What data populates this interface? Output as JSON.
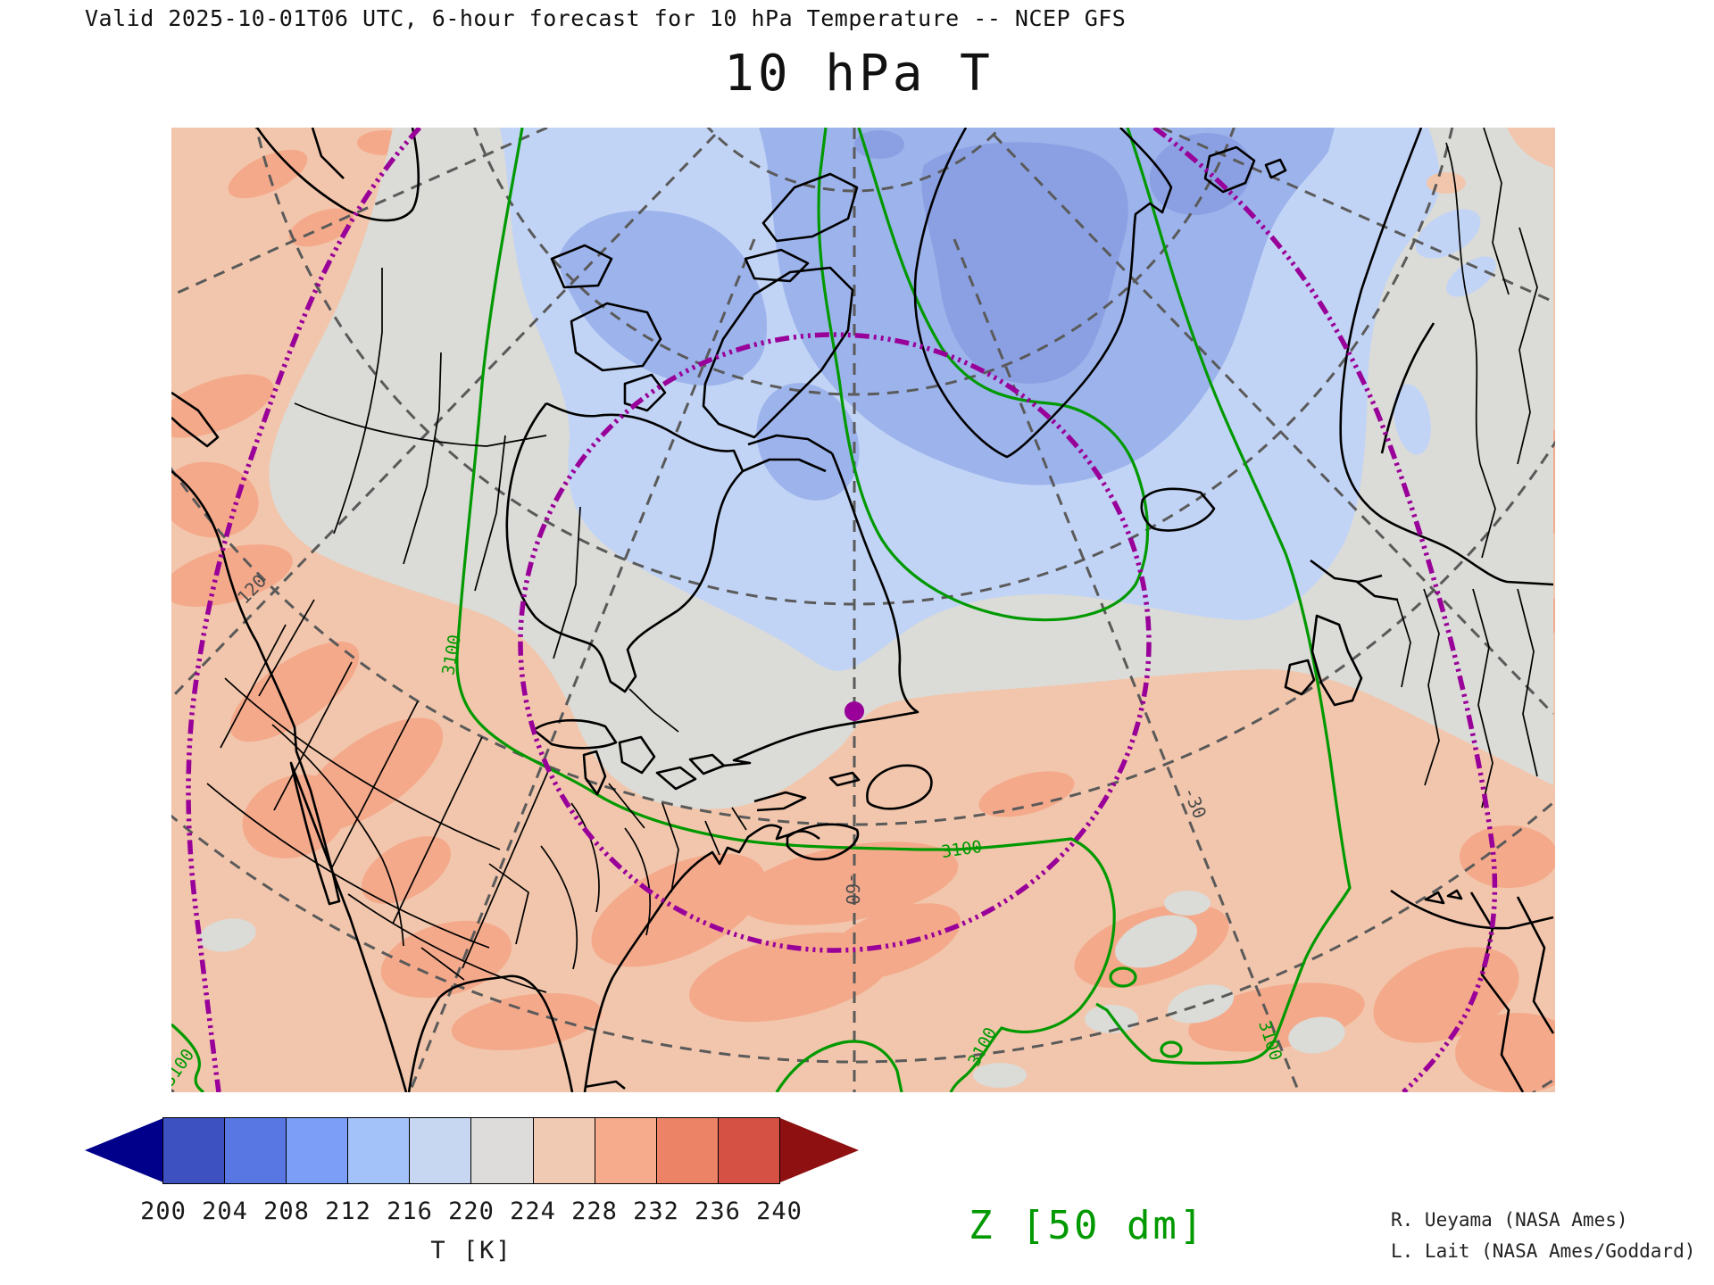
{
  "header": {
    "valid_line": "Valid 2025-10-01T06 UTC, 6-hour forecast for 10 hPa Temperature -- NCEP GFS"
  },
  "title": "10 hPa T",
  "plot": {
    "valid_time": "2025-10-01T06 UTC",
    "forecast": "6-hour forecast",
    "level": "10 hPa",
    "variable": "Temperature",
    "model": "NCEP GFS",
    "height_contour_value": "3100",
    "height_contour_units_label": "Z [50 dm]"
  },
  "colorbar": {
    "tick_labels": [
      "200",
      "204",
      "208",
      "212",
      "216",
      "220",
      "224",
      "228",
      "232",
      "236",
      "240"
    ],
    "axis_label": "T [K]",
    "segment_colors": [
      "#3E51C1",
      "#5977E3",
      "#7D9EF6",
      "#A4C2FA",
      "#C7D7F2",
      "#DDDCDA",
      "#F1CAB3",
      "#F6AB8C",
      "#ED8366",
      "#D45143"
    ],
    "left_arrow_color": "#00008B",
    "right_arrow_color": "#8E1010"
  },
  "annotations": {
    "z_label": "Z [50 dm]",
    "credit_line1": "R. Ueyama (NASA Ames)",
    "credit_line2": "L. Lait (NASA Ames/Goddard)"
  },
  "map_labels": {
    "contour_labels": [
      {
        "text": "3100"
      },
      {
        "text": "3100"
      },
      {
        "text": "3100"
      },
      {
        "text": "3100"
      },
      {
        "text": "3100"
      }
    ],
    "graticule_labels": [
      {
        "text": "120"
      },
      {
        "text": "-60"
      },
      {
        "text": "-30"
      }
    ]
  },
  "colors": {
    "peach": "#F2C6AC",
    "peach_dark": "#F4A98B",
    "gray": "#DBDBD7",
    "blue_light": "#C2D4F5",
    "blue_mid": "#9DB3EC",
    "blue_deep": "#8BA0E2",
    "contour_green": "#009900",
    "vortex_purple": "#990099",
    "graticule": "#5A5A5A",
    "coast": "#000000"
  }
}
